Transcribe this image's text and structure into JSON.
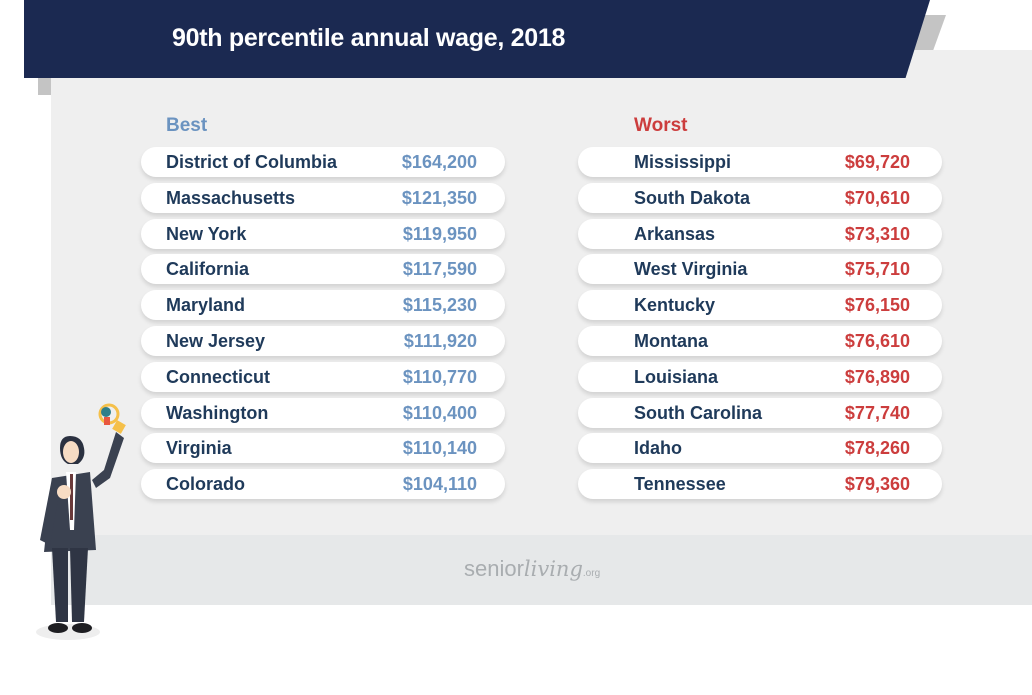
{
  "title": "90th percentile annual wage, 2018",
  "best": {
    "heading": "Best",
    "rows": [
      {
        "name": "District of Columbia",
        "value": "$164,200"
      },
      {
        "name": "Massachusetts",
        "value": "$121,350"
      },
      {
        "name": "New York",
        "value": "$119,950"
      },
      {
        "name": "California",
        "value": "$117,590"
      },
      {
        "name": "Maryland",
        "value": "$115,230"
      },
      {
        "name": "New Jersey",
        "value": "$111,920"
      },
      {
        "name": "Connecticut",
        "value": "$110,770"
      },
      {
        "name": "Washington",
        "value": "$110,400"
      },
      {
        "name": "Virginia",
        "value": "$110,140"
      },
      {
        "name": "Colorado",
        "value": "$104,110"
      }
    ]
  },
  "worst": {
    "heading": "Worst",
    "rows": [
      {
        "name": "Mississippi",
        "value": "$69,720"
      },
      {
        "name": "South Dakota",
        "value": "$70,610"
      },
      {
        "name": "Arkansas",
        "value": "$73,310"
      },
      {
        "name": "West Virginia",
        "value": "$75,710"
      },
      {
        "name": "Kentucky",
        "value": "$76,150"
      },
      {
        "name": "Montana",
        "value": "$76,610"
      },
      {
        "name": "Louisiana",
        "value": "$76,890"
      },
      {
        "name": "South Carolina",
        "value": "$77,740"
      },
      {
        "name": "Idaho",
        "value": "$78,260"
      },
      {
        "name": "Tennessee",
        "value": "$79,360"
      }
    ]
  },
  "logo": {
    "part1": "senior",
    "part2": "living",
    "part3": ".org"
  },
  "colors": {
    "navy": "#1b2951",
    "best": "#6b93c0",
    "worst": "#cc3d3d",
    "text": "#1f3a5a"
  },
  "chart_data": {
    "type": "table",
    "title": "90th percentile annual wage, 2018",
    "columns": [
      "State",
      "Wage (USD)"
    ],
    "series": [
      {
        "name": "Best",
        "categories": [
          "District of Columbia",
          "Massachusetts",
          "New York",
          "California",
          "Maryland",
          "New Jersey",
          "Connecticut",
          "Washington",
          "Virginia",
          "Colorado"
        ],
        "values": [
          164200,
          121350,
          119950,
          117590,
          115230,
          111920,
          110770,
          110400,
          110140,
          104110
        ]
      },
      {
        "name": "Worst",
        "categories": [
          "Mississippi",
          "South Dakota",
          "Arkansas",
          "West Virginia",
          "Kentucky",
          "Montana",
          "Louisiana",
          "South Carolina",
          "Idaho",
          "Tennessee"
        ],
        "values": [
          69720,
          70610,
          73310,
          75710,
          76150,
          76610,
          76890,
          77740,
          78260,
          79360
        ]
      }
    ]
  }
}
